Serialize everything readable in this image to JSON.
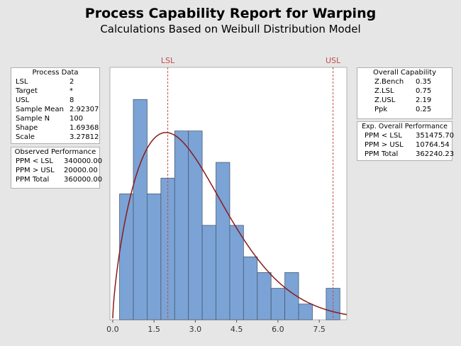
{
  "title": "Process Capability Report for Warping",
  "subtitle": "Calculations Based on Weibull Distribution Model",
  "process_data": {
    "header": "Process Data",
    "rows": [
      {
        "k": "LSL",
        "v": "2"
      },
      {
        "k": "Target",
        "v": "*"
      },
      {
        "k": "USL",
        "v": "8"
      },
      {
        "k": "Sample Mean",
        "v": "2.92307"
      },
      {
        "k": "Sample N",
        "v": "100"
      },
      {
        "k": "Shape",
        "v": "1.69368"
      },
      {
        "k": "Scale",
        "v": "3.27812"
      }
    ]
  },
  "observed": {
    "header": "Observed Performance",
    "rows": [
      {
        "k": "PPM < LSL",
        "v": "340000.00"
      },
      {
        "k": "PPM > USL",
        "v": "20000.00"
      },
      {
        "k": "PPM Total",
        "v": "360000.00"
      }
    ]
  },
  "overall_capability": {
    "header": "Overall Capability",
    "rows": [
      {
        "k": "Z.Bench",
        "v": "0.35"
      },
      {
        "k": "Z.LSL",
        "v": "0.75"
      },
      {
        "k": "Z.USL",
        "v": "2.19"
      },
      {
        "k": "Ppk",
        "v": "0.25"
      }
    ]
  },
  "exp_overall": {
    "header": "Exp. Overall Performance",
    "rows": [
      {
        "k": "PPM < LSL",
        "v": "351475.70"
      },
      {
        "k": "PPM > USL",
        "v": "10764.54"
      },
      {
        "k": "PPM Total",
        "v": "362240.23"
      }
    ]
  },
  "chart_data": {
    "type": "bar",
    "title": "Process Capability Report for Warping",
    "bin_width": 0.5,
    "bin_starts": [
      0.25,
      0.75,
      1.25,
      1.75,
      2.25,
      2.75,
      3.25,
      3.75,
      4.25,
      4.75,
      5.25,
      5.75,
      6.25,
      6.75,
      7.25,
      7.75
    ],
    "values": [
      8,
      14,
      8,
      9,
      12,
      12,
      6,
      10,
      6,
      4,
      3,
      2,
      3,
      1,
      0,
      2
    ],
    "xlim": [
      -0.1,
      8.5
    ],
    "ylim": [
      0,
      15.5
    ],
    "xticks": [
      "0.0",
      "1.5",
      "3.0",
      "4.5",
      "6.0",
      "7.5"
    ],
    "xtick_values": [
      0,
      1.5,
      3,
      4.5,
      6,
      7.5
    ],
    "lsl": {
      "label": "LSL",
      "value": 2
    },
    "usl": {
      "label": "USL",
      "value": 8
    },
    "fit": {
      "distribution": "Weibull",
      "shape": 1.69368,
      "scale": 3.27812,
      "n": 100
    },
    "colors": {
      "bar": "#7ba3d6",
      "bar_edge": "#4a5a72",
      "curve": "#8b1a1a",
      "spec": "#c0504d"
    }
  }
}
